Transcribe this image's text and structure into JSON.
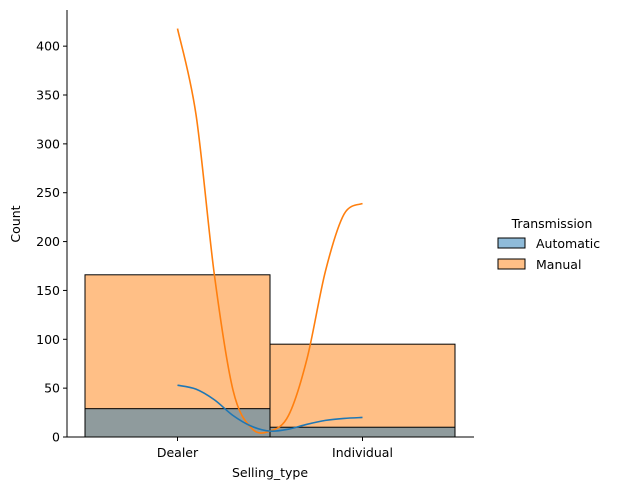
{
  "chart_data": {
    "type": "histogram",
    "xlabel": "Selling_type",
    "ylabel": "Count",
    "categories": [
      "Dealer",
      "Individual"
    ],
    "ylim": [
      0,
      437
    ],
    "yticks": [
      0,
      50,
      100,
      150,
      200,
      250,
      300,
      350,
      400
    ],
    "grid": false,
    "legend": {
      "title": "Transmission",
      "placement": "right"
    },
    "series": [
      {
        "name": "Automatic",
        "values": [
          29,
          10
        ],
        "color": "#1f77b4",
        "fill": "#8fbbd9"
      },
      {
        "name": "Manual",
        "values": [
          166,
          95
        ],
        "color": "#ff7f0e",
        "fill": "#ffbf86"
      }
    ],
    "kde": [
      {
        "series": "Manual",
        "x": [
          0,
          0.1,
          0.2,
          0.3,
          0.4,
          0.5,
          0.6,
          0.7,
          0.8,
          0.9,
          1.0
        ],
        "y": [
          418,
          330,
          165,
          48,
          9,
          6,
          22,
          80,
          170,
          228,
          239
        ]
      },
      {
        "series": "Automatic",
        "x": [
          0,
          0.1,
          0.2,
          0.3,
          0.4,
          0.5,
          0.6,
          0.7,
          0.8,
          0.9,
          1.0
        ],
        "y": [
          53,
          49,
          38,
          22,
          11,
          6,
          8,
          13,
          17,
          19,
          20
        ]
      }
    ]
  }
}
